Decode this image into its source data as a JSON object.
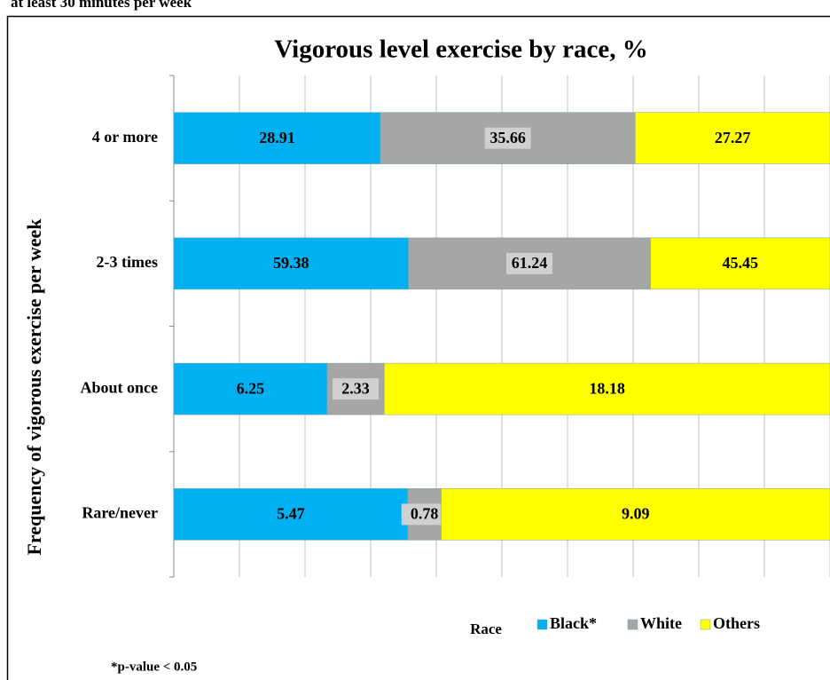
{
  "header": "at least 30 minutes per week",
  "chart_data": {
    "type": "bar",
    "orientation": "horizontal",
    "stacking": "percent",
    "title": "Vigorous level exercise by race, %",
    "y_label": "Frequency of vigorous exercise per week",
    "legend_title": "Race",
    "categories": [
      "4 or more",
      "2-3 times",
      "About once",
      "Rare/never"
    ],
    "series": [
      {
        "name": "Black*",
        "color": "#00b0f0",
        "values": [
          28.91,
          59.38,
          6.25,
          5.47
        ]
      },
      {
        "name": "White",
        "color": "#a6a6a6",
        "values": [
          35.66,
          61.24,
          2.33,
          0.78
        ]
      },
      {
        "name": "Others",
        "color": "#ffff00",
        "values": [
          27.27,
          45.45,
          18.18,
          9.09
        ]
      }
    ],
    "xlim": [
      0,
      100
    ],
    "xticks": [
      0,
      10,
      20,
      30,
      40,
      50,
      60,
      70,
      80,
      90,
      100
    ],
    "grid": true,
    "legend": "bottom",
    "footnote": "*p-value < 0.05"
  }
}
